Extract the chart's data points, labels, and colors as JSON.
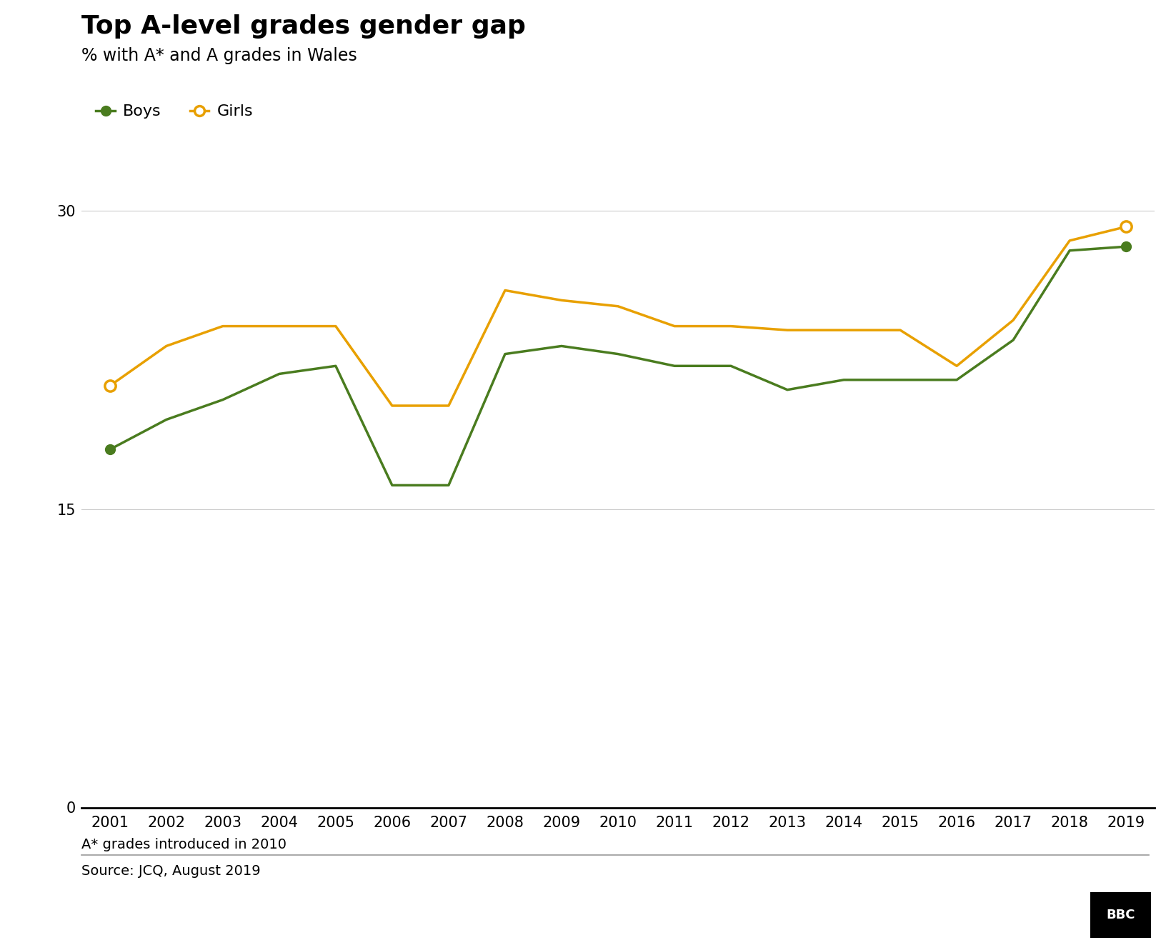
{
  "title": "Top A-level grades gender gap",
  "subtitle": "% with A* and A grades in Wales",
  "footnote": "A* grades introduced in 2010",
  "source": "Source: JCQ, August 2019",
  "years": [
    2001,
    2002,
    2003,
    2004,
    2005,
    2006,
    2007,
    2008,
    2009,
    2010,
    2011,
    2012,
    2013,
    2014,
    2015,
    2016,
    2017,
    2018,
    2019
  ],
  "boys": [
    18.0,
    19.5,
    20.5,
    21.8,
    22.2,
    16.2,
    16.2,
    22.8,
    23.2,
    22.8,
    22.2,
    22.2,
    21.0,
    21.5,
    21.5,
    21.5,
    23.5,
    28.0,
    28.2
  ],
  "girls": [
    21.2,
    23.2,
    24.2,
    24.2,
    24.2,
    20.2,
    20.2,
    26.0,
    25.5,
    25.2,
    24.2,
    24.2,
    24.0,
    24.0,
    24.0,
    22.2,
    24.5,
    28.5,
    29.2
  ],
  "boys_color": "#4a7c1f",
  "girls_color": "#e8a000",
  "ylim": [
    0,
    32
  ],
  "yticks": [
    0,
    15,
    30
  ],
  "background_color": "#ffffff",
  "title_fontsize": 26,
  "subtitle_fontsize": 17,
  "tick_fontsize": 15,
  "legend_fontsize": 16,
  "footnote_fontsize": 14,
  "source_fontsize": 14
}
